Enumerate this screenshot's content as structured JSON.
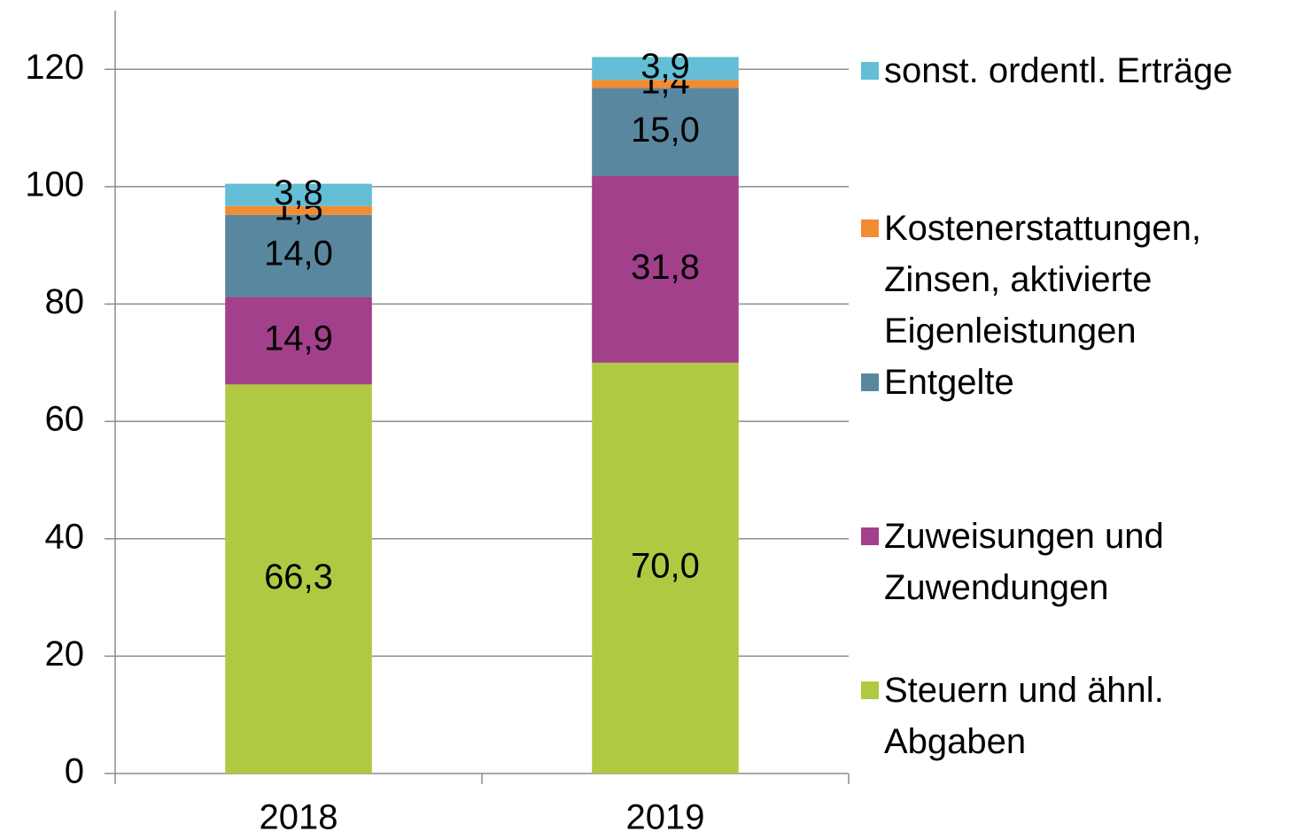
{
  "chart_data": {
    "type": "stacked_bar",
    "categories": [
      "2018",
      "2019"
    ],
    "ylim": [
      0,
      130
    ],
    "yticks": [
      0,
      20,
      40,
      60,
      80,
      100,
      120
    ],
    "grid": true,
    "legend": "right",
    "series": [
      {
        "name": "Steuern und ähnl. Abgaben",
        "color": "#b0c943",
        "values": [
          66.3,
          70.0
        ],
        "value_labels": [
          "66,3",
          "70,0"
        ]
      },
      {
        "name": "Zuweisungen und Zuwendungen",
        "color": "#a2408b",
        "values": [
          14.9,
          31.8
        ],
        "value_labels": [
          "14,9",
          "31,8"
        ]
      },
      {
        "name": "Entgelte",
        "color": "#5a87a0",
        "values": [
          14.0,
          15.0
        ],
        "value_labels": [
          "14,0",
          "15,0"
        ]
      },
      {
        "name": "Kostenerstattungen, Zinsen, aktivierte Eigenleistungen",
        "color": "#f28c33",
        "values": [
          1.5,
          1.4
        ],
        "value_labels": [
          "1,5",
          "1,4"
        ]
      },
      {
        "name": "sonst. ordentl. Erträge",
        "color": "#63bed6",
        "values": [
          3.8,
          3.9
        ],
        "value_labels": [
          "3,8",
          "3,9"
        ]
      }
    ]
  }
}
